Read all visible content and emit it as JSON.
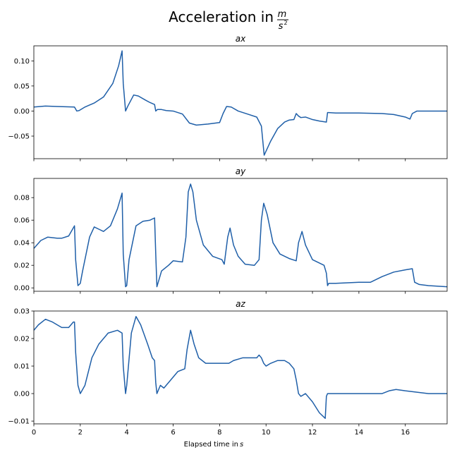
{
  "suptitle": {
    "prefix": "Acceleration in",
    "num": "m",
    "den": "s",
    "den_exp": "2"
  },
  "xlabel": {
    "text": "Elapsed time in ",
    "unit": "s"
  },
  "colors": {
    "line": "#1f5fa8",
    "axes": "#000000",
    "background": "#ffffff"
  },
  "chart_data": [
    {
      "type": "line",
      "title": "ax",
      "xlim": [
        0,
        17.8
      ],
      "ylim": [
        -0.095,
        0.13
      ],
      "xticks": [
        0,
        2,
        4,
        6,
        8,
        10,
        12,
        14,
        16
      ],
      "xtick_labels_visible": false,
      "yticks": [
        -0.05,
        0.0,
        0.05,
        0.1
      ],
      "ytick_labels": [
        "−0.05",
        "0.00",
        "0.05",
        "0.10"
      ],
      "grid": false,
      "series": [
        {
          "x": [
            0,
            0.5,
            1.0,
            1.75,
            1.85,
            1.95,
            2.2,
            2.6,
            3.0,
            3.4,
            3.65,
            3.8,
            3.85,
            3.95,
            4.05,
            4.3,
            4.5,
            4.8,
            5.0,
            5.2,
            5.25,
            5.32,
            5.5,
            5.7,
            6.0,
            6.4,
            6.7,
            7.0,
            7.5,
            8.0,
            8.15,
            8.3,
            8.5,
            8.8,
            9.2,
            9.6,
            9.8,
            9.92,
            10.0,
            10.2,
            10.5,
            10.8,
            11.0,
            11.2,
            11.3,
            11.4,
            11.5,
            11.7,
            12.0,
            12.3,
            12.6,
            12.65,
            12.7,
            13.0,
            14.0,
            15.0,
            15.5,
            16.0,
            16.2,
            16.3,
            16.5,
            17.0,
            17.8
          ],
          "y": [
            0.008,
            0.01,
            0.009,
            0.008,
            0.0,
            0.001,
            0.008,
            0.016,
            0.028,
            0.055,
            0.09,
            0.12,
            0.055,
            0.0,
            0.01,
            0.032,
            0.03,
            0.022,
            0.017,
            0.013,
            0.0,
            0.003,
            0.003,
            0.001,
            0.0,
            -0.006,
            -0.024,
            -0.028,
            -0.026,
            -0.023,
            -0.005,
            0.009,
            0.008,
            0.0,
            -0.006,
            -0.012,
            -0.03,
            -0.088,
            -0.08,
            -0.06,
            -0.035,
            -0.022,
            -0.018,
            -0.017,
            -0.005,
            -0.01,
            -0.013,
            -0.012,
            -0.017,
            -0.02,
            -0.022,
            -0.003,
            -0.003,
            -0.004,
            -0.004,
            -0.005,
            -0.007,
            -0.012,
            -0.016,
            -0.005,
            0.0,
            0.0,
            0.0
          ]
        }
      ]
    },
    {
      "type": "line",
      "title": "ay",
      "xlim": [
        0,
        17.8
      ],
      "ylim": [
        -0.003,
        0.097
      ],
      "xticks": [
        0,
        2,
        4,
        6,
        8,
        10,
        12,
        14,
        16
      ],
      "xtick_labels_visible": false,
      "yticks": [
        0.0,
        0.02,
        0.04,
        0.06,
        0.08
      ],
      "ytick_labels": [
        "0.00",
        "0.02",
        "0.04",
        "0.06",
        "0.08"
      ],
      "grid": false,
      "series": [
        {
          "x": [
            0,
            0.3,
            0.6,
            1.0,
            1.2,
            1.5,
            1.75,
            1.8,
            1.9,
            2.0,
            2.1,
            2.4,
            2.6,
            2.8,
            3.0,
            3.3,
            3.6,
            3.8,
            3.85,
            3.95,
            4.0,
            4.1,
            4.4,
            4.7,
            5.0,
            5.2,
            5.25,
            5.3,
            5.5,
            5.8,
            6.0,
            6.4,
            6.55,
            6.65,
            6.75,
            6.85,
            7.0,
            7.3,
            7.7,
            8.1,
            8.2,
            8.35,
            8.45,
            8.6,
            8.8,
            9.1,
            9.5,
            9.7,
            9.8,
            9.9,
            10.05,
            10.3,
            10.6,
            11.0,
            11.3,
            11.4,
            11.55,
            11.7,
            12.0,
            12.5,
            12.6,
            12.65,
            12.7,
            13.0,
            14.0,
            14.5,
            15.0,
            15.5,
            16.0,
            16.3,
            16.4,
            16.6,
            17.0,
            17.8
          ],
          "y": [
            0.035,
            0.042,
            0.045,
            0.044,
            0.044,
            0.046,
            0.055,
            0.025,
            0.002,
            0.004,
            0.015,
            0.045,
            0.054,
            0.052,
            0.05,
            0.055,
            0.07,
            0.084,
            0.03,
            0.001,
            0.002,
            0.025,
            0.055,
            0.059,
            0.06,
            0.062,
            0.03,
            0.001,
            0.015,
            0.02,
            0.024,
            0.023,
            0.045,
            0.085,
            0.092,
            0.085,
            0.06,
            0.038,
            0.028,
            0.025,
            0.021,
            0.045,
            0.053,
            0.038,
            0.028,
            0.021,
            0.02,
            0.025,
            0.06,
            0.075,
            0.065,
            0.04,
            0.03,
            0.026,
            0.024,
            0.04,
            0.05,
            0.038,
            0.025,
            0.02,
            0.013,
            0.002,
            0.004,
            0.004,
            0.005,
            0.005,
            0.01,
            0.014,
            0.016,
            0.017,
            0.005,
            0.003,
            0.002,
            0.001
          ]
        }
      ]
    },
    {
      "type": "line",
      "title": "az",
      "xlim": [
        0,
        17.8
      ],
      "ylim": [
        -0.011,
        0.03
      ],
      "xticks": [
        0,
        2,
        4,
        6,
        8,
        10,
        12,
        14,
        16
      ],
      "xtick_labels": [
        "0",
        "2",
        "4",
        "6",
        "8",
        "10",
        "12",
        "14",
        "16"
      ],
      "xtick_labels_visible": true,
      "yticks": [
        -0.01,
        0.0,
        0.01,
        0.02,
        0.03
      ],
      "ytick_labels": [
        "−0.01",
        "0.00",
        "0.01",
        "0.02",
        "0.03"
      ],
      "grid": false,
      "series": [
        {
          "x": [
            0,
            0.2,
            0.5,
            0.8,
            1.0,
            1.2,
            1.5,
            1.7,
            1.75,
            1.8,
            1.9,
            2.0,
            2.2,
            2.5,
            2.8,
            3.2,
            3.6,
            3.8,
            3.85,
            3.95,
            4.0,
            4.2,
            4.4,
            4.6,
            4.9,
            5.1,
            5.2,
            5.25,
            5.3,
            5.45,
            5.6,
            5.8,
            6.2,
            6.5,
            6.6,
            6.75,
            6.9,
            7.1,
            7.4,
            7.8,
            8.2,
            8.4,
            8.6,
            9.0,
            9.6,
            9.7,
            9.8,
            9.9,
            10.0,
            10.2,
            10.5,
            10.8,
            11.0,
            11.2,
            11.3,
            11.4,
            11.5,
            11.7,
            12.0,
            12.3,
            12.55,
            12.6,
            12.65,
            13.0,
            14.0,
            15.0,
            15.3,
            15.6,
            16.0,
            16.5,
            17.0,
            17.8
          ],
          "y": [
            0.023,
            0.025,
            0.027,
            0.026,
            0.025,
            0.024,
            0.024,
            0.026,
            0.026,
            0.015,
            0.003,
            0.0,
            0.003,
            0.013,
            0.018,
            0.022,
            0.023,
            0.022,
            0.01,
            0.0,
            0.003,
            0.022,
            0.028,
            0.025,
            0.018,
            0.013,
            0.012,
            0.004,
            0.0,
            0.003,
            0.002,
            0.004,
            0.008,
            0.009,
            0.016,
            0.023,
            0.018,
            0.013,
            0.011,
            0.011,
            0.011,
            0.011,
            0.012,
            0.013,
            0.013,
            0.014,
            0.013,
            0.011,
            0.01,
            0.011,
            0.012,
            0.012,
            0.011,
            0.009,
            0.005,
            0.0,
            -0.001,
            0.0,
            -0.003,
            -0.007,
            -0.009,
            -0.001,
            0.0,
            0.0,
            0.0,
            0.0,
            0.001,
            0.0015,
            0.001,
            0.0005,
            0.0,
            0.0
          ]
        }
      ]
    }
  ]
}
